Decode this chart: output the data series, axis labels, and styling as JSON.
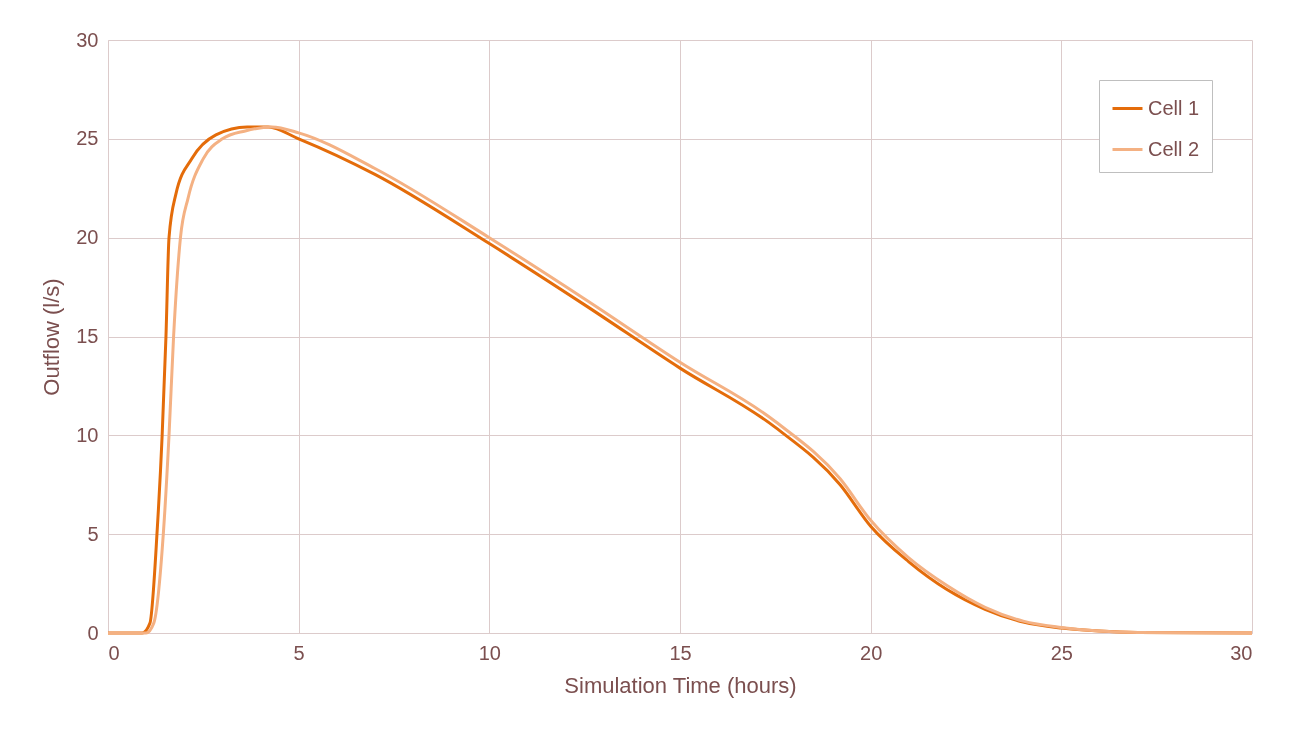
{
  "chart_data": {
    "type": "line",
    "xlabel": "Simulation Time (hours)",
    "ylabel": "Outflow (l/s)",
    "xlim": [
      0,
      30
    ],
    "ylim": [
      0,
      30
    ],
    "xticks": [
      0,
      5,
      10,
      15,
      20,
      25,
      30
    ],
    "yticks": [
      0,
      5,
      10,
      15,
      20,
      25,
      30
    ],
    "grid": true,
    "legend": "top right",
    "line_style": "solid",
    "marker": "none",
    "series": [
      {
        "name": "Cell 1",
        "color": "#e46c0a",
        "x": [
          0,
          0.9,
          1.1,
          1.29,
          1.42,
          1.52,
          1.6,
          1.78,
          2.2,
          2.83,
          3.65,
          4.2,
          5,
          7,
          10,
          12.5,
          15,
          17.5,
          19.2,
          20,
          21,
          22,
          23,
          24,
          25,
          26,
          27,
          30
        ],
        "values": [
          0,
          0,
          0.5,
          5.2,
          10,
          15,
          20,
          22.2,
          24,
          25.2,
          25.6,
          25.6,
          25,
          23.2,
          19.7,
          16.6,
          13.4,
          10.4,
          7.5,
          5.4,
          3.6,
          2.2,
          1.2,
          0.55,
          0.25,
          0.1,
          0.03,
          0
        ]
      },
      {
        "name": "Cell 2",
        "color": "#f4b183",
        "x": [
          0,
          1.0,
          1.2,
          1.45,
          1.6,
          1.72,
          1.9,
          2.1,
          2.5,
          3.0,
          3.6,
          4.3,
          5,
          7,
          10,
          12.5,
          15,
          17.5,
          19.2,
          20,
          21,
          22,
          23,
          24,
          25,
          26,
          27,
          30
        ],
        "values": [
          0,
          0,
          0.5,
          5,
          10,
          15,
          20,
          22,
          24,
          25,
          25.4,
          25.6,
          25.3,
          23.5,
          20,
          16.9,
          13.7,
          10.7,
          7.8,
          5.7,
          3.8,
          2.4,
          1.3,
          0.6,
          0.28,
          0.1,
          0.03,
          0
        ]
      }
    ]
  }
}
